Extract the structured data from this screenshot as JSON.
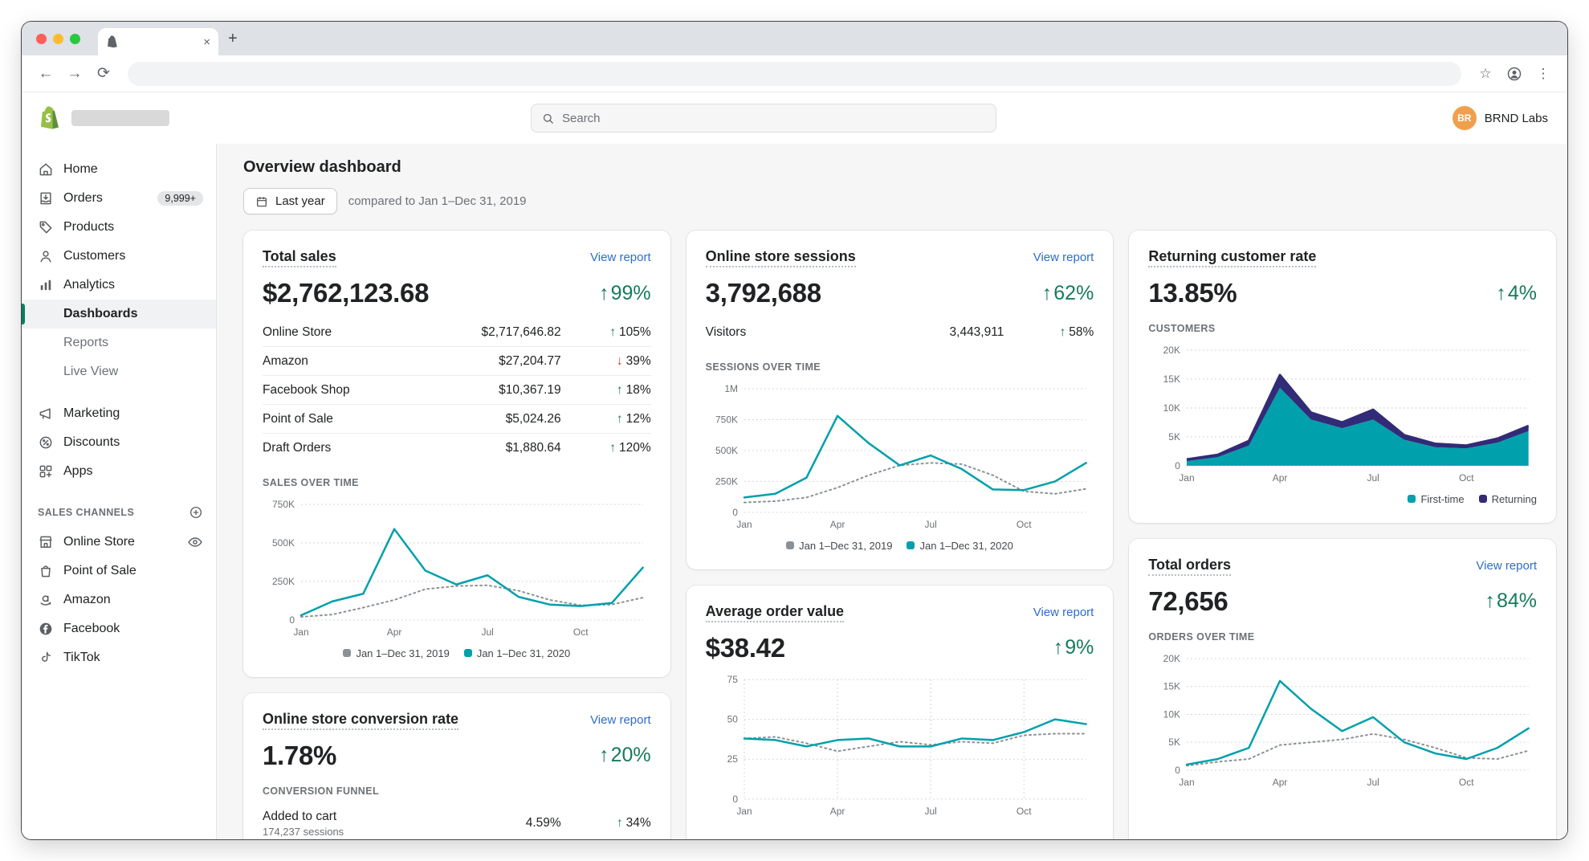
{
  "glyphs": {
    "close": "×",
    "plus": "+",
    "back": "←",
    "forward": "→",
    "reload": "⟳",
    "star": "☆",
    "kebab": "⋮",
    "up": "↑",
    "down": "↓"
  },
  "colors": {
    "teal": "#00a0ac",
    "navy": "#322b77",
    "gray_series": "#8c9196",
    "positive": "#177b5b",
    "negative": "#d72c0d",
    "link_blue": "#2c6ecb",
    "shopify_green": "#008060",
    "logo_green": "#95bf47",
    "traffic_red": "#ff5f57",
    "traffic_yellow": "#febc2e",
    "traffic_green": "#28c840"
  },
  "browser": {
    "tab_title": "",
    "url": ""
  },
  "header": {
    "search_placeholder": "Search",
    "account_initials": "BR",
    "account_name": "BRND Labs"
  },
  "sidebar": {
    "groups": [
      {
        "items": [
          {
            "icon": "home",
            "label": "Home"
          },
          {
            "icon": "orders",
            "label": "Orders",
            "badge": "9,999+"
          },
          {
            "icon": "products",
            "label": "Products"
          },
          {
            "icon": "customers",
            "label": "Customers"
          },
          {
            "icon": "analytics",
            "label": "Analytics"
          },
          {
            "label": "Dashboards",
            "indent": true,
            "active": true
          },
          {
            "label": "Reports",
            "indent": true,
            "muted": true
          },
          {
            "label": "Live View",
            "indent": true,
            "muted": true
          },
          {
            "icon": "marketing",
            "label": "Marketing",
            "gap": true
          },
          {
            "icon": "discounts",
            "label": "Discounts"
          },
          {
            "icon": "apps",
            "label": "Apps"
          }
        ]
      },
      {
        "header": "SALES CHANNELS",
        "header_icon": "plus-circle",
        "items": [
          {
            "icon": "store",
            "label": "Online Store",
            "trailing": "eye"
          },
          {
            "icon": "pos",
            "label": "Point of Sale"
          },
          {
            "icon": "amazon",
            "label": "Amazon"
          },
          {
            "icon": "facebook",
            "label": "Facebook"
          },
          {
            "icon": "tiktok",
            "label": "TikTok"
          }
        ]
      }
    ]
  },
  "page": {
    "title": "Overview dashboard",
    "range_button": "Last year",
    "compare_text": "compared to Jan 1–Dec 31, 2019"
  },
  "cards": {
    "total_sales": {
      "title": "Total sales",
      "link": "View report",
      "value": "$2,762,123.68",
      "delta": {
        "dir": "up",
        "value": "99%"
      },
      "rows": [
        {
          "label": "Online Store",
          "value": "$2,717,646.82",
          "dir": "up",
          "delta": "105%"
        },
        {
          "label": "Amazon",
          "value": "$27,204.77",
          "dir": "down",
          "delta": "39%"
        },
        {
          "label": "Facebook Shop",
          "value": "$10,367.19",
          "dir": "up",
          "delta": "18%"
        },
        {
          "label": "Point of Sale",
          "value": "$5,024.26",
          "dir": "up",
          "delta": "12%"
        },
        {
          "label": "Draft Orders",
          "value": "$1,880.64",
          "dir": "up",
          "delta": "120%"
        }
      ],
      "section_label": "SALES OVER TIME"
    },
    "sessions": {
      "title": "Online store sessions",
      "link": "View report",
      "value": "3,792,688",
      "delta": {
        "dir": "up",
        "value": "62%"
      },
      "rows": [
        {
          "label": "Visitors",
          "value": "3,443,911",
          "dir": "up",
          "delta": "58%"
        }
      ],
      "section_label": "SESSIONS OVER TIME"
    },
    "returning": {
      "title": "Returning customer rate",
      "value": "13.85%",
      "delta": {
        "dir": "up",
        "value": "4%"
      },
      "section_label": "CUSTOMERS"
    },
    "aov": {
      "title": "Average order value",
      "link": "View report",
      "value": "$38.42",
      "delta": {
        "dir": "up",
        "value": "9%"
      }
    },
    "orders": {
      "title": "Total orders",
      "link": "View report",
      "value": "72,656",
      "delta": {
        "dir": "up",
        "value": "84%"
      },
      "section_label": "ORDERS OVER TIME"
    },
    "conversion": {
      "title": "Online store conversion rate",
      "link": "View report",
      "value": "1.78%",
      "delta": {
        "dir": "up",
        "value": "20%"
      },
      "section_label": "CONVERSION FUNNEL",
      "rows": [
        {
          "label": "Added to cart",
          "sub": "174,237 sessions",
          "value": "4.59%",
          "dir": "up",
          "delta": "34%"
        }
      ]
    }
  },
  "charts": {
    "sales": {
      "type": "line",
      "h": 180,
      "ymax": 750000,
      "yticks": [
        {
          "v": 0,
          "label": "0"
        },
        {
          "v": 250000,
          "label": "250K"
        },
        {
          "v": 500000,
          "label": "500K"
        },
        {
          "v": 750000,
          "label": "750K"
        }
      ],
      "xticks": [
        {
          "i": 0,
          "label": "Jan"
        },
        {
          "i": 3,
          "label": "Apr"
        },
        {
          "i": 6,
          "label": "Jul"
        },
        {
          "i": 9,
          "label": "Oct"
        }
      ],
      "series": [
        {
          "name": "Jan 1–Dec 31, 2019",
          "color": "#8c9196",
          "dashed": true,
          "values": [
            20000,
            35000,
            80000,
            130000,
            200000,
            220000,
            225000,
            190000,
            130000,
            95000,
            100000,
            145000
          ]
        },
        {
          "name": "Jan 1–Dec 31, 2020",
          "color": "#00a0ac",
          "values": [
            30000,
            120000,
            170000,
            590000,
            320000,
            230000,
            290000,
            150000,
            100000,
            90000,
            110000,
            340000
          ]
        }
      ],
      "legend": [
        {
          "color": "#8c9196",
          "label": "Jan 1–Dec 31, 2019"
        },
        {
          "color": "#00a0ac",
          "label": "Jan 1–Dec 31, 2020"
        }
      ]
    },
    "sessions": {
      "type": "line",
      "h": 190,
      "ymax": 1000000,
      "yticks": [
        {
          "v": 0,
          "label": "0"
        },
        {
          "v": 250000,
          "label": "250K"
        },
        {
          "v": 500000,
          "label": "500K"
        },
        {
          "v": 750000,
          "label": "750K"
        },
        {
          "v": 1000000,
          "label": "1M"
        }
      ],
      "xticks": [
        {
          "i": 0,
          "label": "Jan"
        },
        {
          "i": 3,
          "label": "Apr"
        },
        {
          "i": 6,
          "label": "Jul"
        },
        {
          "i": 9,
          "label": "Oct"
        }
      ],
      "series": [
        {
          "name": "Jan 1–Dec 31, 2019",
          "color": "#8c9196",
          "dashed": true,
          "values": [
            80000,
            90000,
            120000,
            200000,
            300000,
            380000,
            400000,
            390000,
            300000,
            170000,
            150000,
            190000
          ]
        },
        {
          "name": "Jan 1–Dec 31, 2020",
          "color": "#00a0ac",
          "values": [
            120000,
            150000,
            280000,
            780000,
            560000,
            380000,
            460000,
            350000,
            185000,
            180000,
            250000,
            400000
          ]
        }
      ],
      "legend": [
        {
          "color": "#8c9196",
          "label": "Jan 1–Dec 31, 2019"
        },
        {
          "color": "#00a0ac",
          "label": "Jan 1–Dec 31, 2020"
        }
      ]
    },
    "customers": {
      "type": "stacked-area",
      "h": 180,
      "ymax": 20000,
      "yticks": [
        {
          "v": 0,
          "label": "0"
        },
        {
          "v": 5000,
          "label": "5K"
        },
        {
          "v": 10000,
          "label": "10K"
        },
        {
          "v": 15000,
          "label": "15K"
        },
        {
          "v": 20000,
          "label": "20K"
        }
      ],
      "xticks": [
        {
          "i": 0,
          "label": "Jan"
        },
        {
          "i": 3,
          "label": "Apr"
        },
        {
          "i": 6,
          "label": "Jul"
        },
        {
          "i": 9,
          "label": "Oct"
        }
      ],
      "series": [
        {
          "name": "First-time",
          "color": "#00a0ac",
          "values": [
            800,
            1500,
            3500,
            13500,
            8000,
            6500,
            8000,
            4500,
            3200,
            3000,
            4000,
            6000
          ]
        },
        {
          "name": "Returning",
          "color": "#322b77",
          "values": [
            300,
            400,
            800,
            2200,
            1200,
            1000,
            1700,
            800,
            600,
            500,
            700,
            900
          ]
        }
      ],
      "legend": [
        {
          "color": "#00a0ac",
          "label": "First-time"
        },
        {
          "color": "#322b77",
          "label": "Returning"
        }
      ]
    },
    "aov": {
      "type": "line",
      "h": 185,
      "ymax": 75,
      "vgrid": [
        0,
        3,
        6,
        9
      ],
      "yticks": [
        {
          "v": 0,
          "label": "0"
        },
        {
          "v": 25,
          "label": "25"
        },
        {
          "v": 50,
          "label": "50"
        },
        {
          "v": 75,
          "label": "75"
        }
      ],
      "xticks": [
        {
          "i": 0,
          "label": "Jan"
        },
        {
          "i": 3,
          "label": "Apr"
        },
        {
          "i": 6,
          "label": "Jul"
        },
        {
          "i": 9,
          "label": "Oct"
        }
      ],
      "series": [
        {
          "name": "Jan 1–Dec 31, 2019",
          "color": "#8c9196",
          "dashed": true,
          "values": [
            38,
            39,
            35,
            30,
            33,
            36,
            34,
            36,
            35,
            40,
            41,
            41
          ]
        },
        {
          "name": "Jan 1–Dec 31, 2020",
          "color": "#00a0ac",
          "values": [
            38,
            37,
            33,
            37,
            38,
            33,
            33,
            38,
            37,
            42,
            50,
            47
          ]
        }
      ]
    },
    "orders": {
      "type": "line",
      "h": 175,
      "ymax": 20000,
      "yticks": [
        {
          "v": 0,
          "label": "0"
        },
        {
          "v": 5000,
          "label": "5K"
        },
        {
          "v": 10000,
          "label": "10K"
        },
        {
          "v": 15000,
          "label": "15K"
        },
        {
          "v": 20000,
          "label": "20K"
        }
      ],
      "xticks": [
        {
          "i": 0,
          "label": "Jan"
        },
        {
          "i": 3,
          "label": "Apr"
        },
        {
          "i": 6,
          "label": "Jul"
        },
        {
          "i": 9,
          "label": "Oct"
        }
      ],
      "series": [
        {
          "name": "Jan 1–Dec 31, 2019",
          "color": "#8c9196",
          "dashed": true,
          "values": [
            800,
            1500,
            2000,
            4500,
            5000,
            5500,
            6500,
            5500,
            4000,
            2200,
            2000,
            3500
          ]
        },
        {
          "name": "Jan 1–Dec 31, 2020",
          "color": "#00a0ac",
          "values": [
            1000,
            2000,
            4000,
            16000,
            11000,
            7000,
            9500,
            5000,
            3000,
            2000,
            4000,
            7500
          ]
        }
      ]
    }
  }
}
